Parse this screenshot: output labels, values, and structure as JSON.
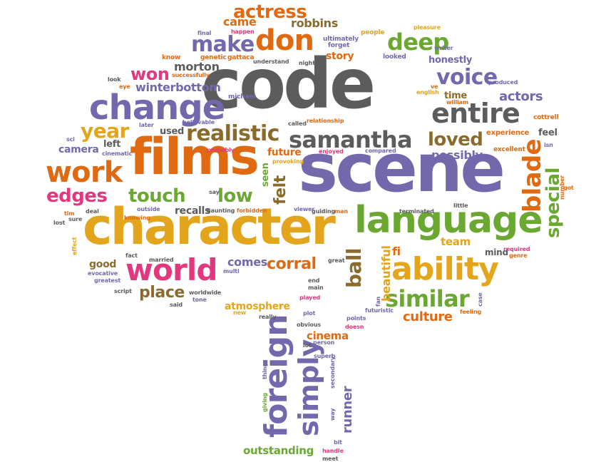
{
  "palette": {
    "gray": "#5c5c5c",
    "orange": "#e06a12",
    "purple": "#7468ad",
    "green": "#6aa832",
    "yellow": "#e3a51b",
    "pink": "#e2387f",
    "brown": "#8a6b2c",
    "teal": "#2e9a76"
  },
  "words": [
    {
      "text": "code",
      "color": "gray"
    },
    {
      "text": "scene",
      "color": "purple"
    },
    {
      "text": "character",
      "color": "yellow"
    },
    {
      "text": "films",
      "color": "orange"
    },
    {
      "text": "language",
      "color": "green"
    },
    {
      "text": "ability",
      "color": "yellow"
    },
    {
      "text": "change",
      "color": "purple"
    },
    {
      "text": "entire",
      "color": "gray"
    },
    {
      "text": "samantha",
      "color": "gray"
    },
    {
      "text": "world",
      "color": "pink"
    },
    {
      "text": "work",
      "color": "orange"
    },
    {
      "text": "don",
      "color": "orange"
    },
    {
      "text": "make",
      "color": "purple"
    },
    {
      "text": "deep",
      "color": "green"
    },
    {
      "text": "actress",
      "color": "orange"
    },
    {
      "text": "realistic",
      "color": "brown"
    },
    {
      "text": "voice",
      "color": "purple"
    },
    {
      "text": "loved",
      "color": "brown"
    },
    {
      "text": "similar",
      "color": "green"
    },
    {
      "text": "year",
      "color": "yellow"
    },
    {
      "text": "touch",
      "color": "green"
    },
    {
      "text": "edges",
      "color": "pink"
    },
    {
      "text": "low",
      "color": "green"
    },
    {
      "text": "won",
      "color": "pink"
    },
    {
      "text": "blade",
      "color": "orange"
    },
    {
      "text": "special",
      "color": "green"
    },
    {
      "text": "foreign",
      "color": "purple"
    },
    {
      "text": "simply",
      "color": "purple"
    },
    {
      "text": "ball",
      "color": "brown"
    },
    {
      "text": "corral",
      "color": "orange"
    },
    {
      "text": "place",
      "color": "brown"
    },
    {
      "text": "felt",
      "color": "brown"
    },
    {
      "text": "culture",
      "color": "orange"
    },
    {
      "text": "possibly",
      "color": "purple"
    },
    {
      "text": "actors",
      "color": "purple"
    },
    {
      "text": "winterbottom",
      "color": "purple"
    },
    {
      "text": "robbins",
      "color": "brown"
    },
    {
      "text": "came",
      "color": "orange"
    },
    {
      "text": "beautiful",
      "color": "yellow"
    },
    {
      "text": "runner",
      "color": "purple"
    },
    {
      "text": "comes",
      "color": "purple"
    },
    {
      "text": "morton",
      "color": "gray"
    },
    {
      "text": "camera",
      "color": "purple"
    },
    {
      "text": "outstanding",
      "color": "green"
    },
    {
      "text": "cinema",
      "color": "orange"
    },
    {
      "text": "atmosphere",
      "color": "yellow"
    },
    {
      "text": "recalls",
      "color": "gray"
    },
    {
      "text": "good",
      "color": "brown"
    },
    {
      "text": "future",
      "color": "orange"
    },
    {
      "text": "seen",
      "color": "green"
    },
    {
      "text": "left",
      "color": "gray"
    },
    {
      "text": "used",
      "color": "gray"
    },
    {
      "text": "story",
      "color": "orange"
    },
    {
      "text": "team",
      "color": "yellow"
    },
    {
      "text": "honestly",
      "color": "purple"
    },
    {
      "text": "time",
      "color": "brown"
    },
    {
      "text": "feel",
      "color": "gray"
    },
    {
      "text": "fi",
      "color": "orange"
    },
    {
      "text": "mind",
      "color": "gray"
    },
    {
      "text": "experience",
      "color": "orange"
    },
    {
      "text": "excellent",
      "color": "orange"
    },
    {
      "text": "cottrell",
      "color": "orange"
    },
    {
      "text": "produced",
      "color": "purple"
    },
    {
      "text": "writer",
      "color": "purple"
    },
    {
      "text": "william",
      "color": "orange"
    },
    {
      "text": "english",
      "color": "yellow"
    },
    {
      "text": "ve",
      "color": "orange"
    },
    {
      "text": "people",
      "color": "yellow"
    },
    {
      "text": "pleasure",
      "color": "yellow"
    },
    {
      "text": "looked",
      "color": "purple"
    },
    {
      "text": "ultimately",
      "color": "purple"
    },
    {
      "text": "forget",
      "color": "purple"
    },
    {
      "text": "final",
      "color": "purple"
    },
    {
      "text": "happen",
      "color": "pink"
    },
    {
      "text": "genetic",
      "color": "orange"
    },
    {
      "text": "gattaca",
      "color": "orange"
    },
    {
      "text": "know",
      "color": "orange"
    },
    {
      "text": "understand",
      "color": "gray"
    },
    {
      "text": "night",
      "color": "gray"
    },
    {
      "text": "look",
      "color": "gray"
    },
    {
      "text": "successfully",
      "color": "orange"
    },
    {
      "text": "eye",
      "color": "orange"
    },
    {
      "text": "michael",
      "color": "purple"
    },
    {
      "text": "relationship",
      "color": "orange"
    },
    {
      "text": "called",
      "color": "gray"
    },
    {
      "text": "later",
      "color": "purple"
    },
    {
      "text": "believable",
      "color": "purple"
    },
    {
      "text": "sci",
      "color": "purple"
    },
    {
      "text": "cinematic",
      "color": "purple"
    },
    {
      "text": "probably",
      "color": "pink"
    },
    {
      "text": "provoking",
      "color": "yellow"
    },
    {
      "text": "enjoyed",
      "color": "pink"
    },
    {
      "text": "compared",
      "color": "purple"
    },
    {
      "text": "isn",
      "color": "purple"
    },
    {
      "text": "got",
      "color": "orange"
    },
    {
      "text": "number",
      "color": "orange"
    },
    {
      "text": "say",
      "color": "gray"
    },
    {
      "text": "haunting",
      "color": "gray"
    },
    {
      "text": "outside",
      "color": "purple"
    },
    {
      "text": "knowing",
      "color": "orange"
    },
    {
      "text": "forbidden",
      "color": "orange"
    },
    {
      "text": "tim",
      "color": "orange"
    },
    {
      "text": "deal",
      "color": "gray"
    },
    {
      "text": "lost",
      "color": "gray"
    },
    {
      "text": "sure",
      "color": "gray"
    },
    {
      "text": "viewer",
      "color": "purple"
    },
    {
      "text": "guiding",
      "color": "gray"
    },
    {
      "text": "man",
      "color": "orange"
    },
    {
      "text": "terminated",
      "color": "gray"
    },
    {
      "text": "little",
      "color": "gray"
    },
    {
      "text": "required",
      "color": "pink"
    },
    {
      "text": "genre",
      "color": "orange"
    },
    {
      "text": "effect",
      "color": "yellow"
    },
    {
      "text": "fact",
      "color": "gray"
    },
    {
      "text": "married",
      "color": "gray"
    },
    {
      "text": "multi",
      "color": "purple"
    },
    {
      "text": "great",
      "color": "gray"
    },
    {
      "text": "evocative",
      "color": "purple"
    },
    {
      "text": "greatest",
      "color": "purple"
    },
    {
      "text": "end",
      "color": "gray"
    },
    {
      "text": "main",
      "color": "gray"
    },
    {
      "text": "played",
      "color": "pink"
    },
    {
      "text": "script",
      "color": "gray"
    },
    {
      "text": "worldwide",
      "color": "gray"
    },
    {
      "text": "tone",
      "color": "purple"
    },
    {
      "text": "said",
      "color": "gray"
    },
    {
      "text": "new",
      "color": "yellow"
    },
    {
      "text": "really",
      "color": "gray"
    },
    {
      "text": "plot",
      "color": "purple"
    },
    {
      "text": "obvious",
      "color": "gray"
    },
    {
      "text": "doesn",
      "color": "pink"
    },
    {
      "text": "person",
      "color": "purple"
    },
    {
      "text": "lot",
      "color": "gray"
    },
    {
      "text": "superb",
      "color": "purple"
    },
    {
      "text": "fan",
      "color": "purple"
    },
    {
      "text": "futuristic",
      "color": "purple"
    },
    {
      "text": "points",
      "color": "purple"
    },
    {
      "text": "feeling",
      "color": "orange"
    },
    {
      "text": "case",
      "color": "purple"
    },
    {
      "text": "secondary",
      "color": "purple"
    },
    {
      "text": "way",
      "color": "purple"
    },
    {
      "text": "bit",
      "color": "purple"
    },
    {
      "text": "handle",
      "color": "pink"
    },
    {
      "text": "meet",
      "color": "gray"
    },
    {
      "text": "things",
      "color": "purple"
    },
    {
      "text": "giving",
      "color": "green"
    }
  ]
}
